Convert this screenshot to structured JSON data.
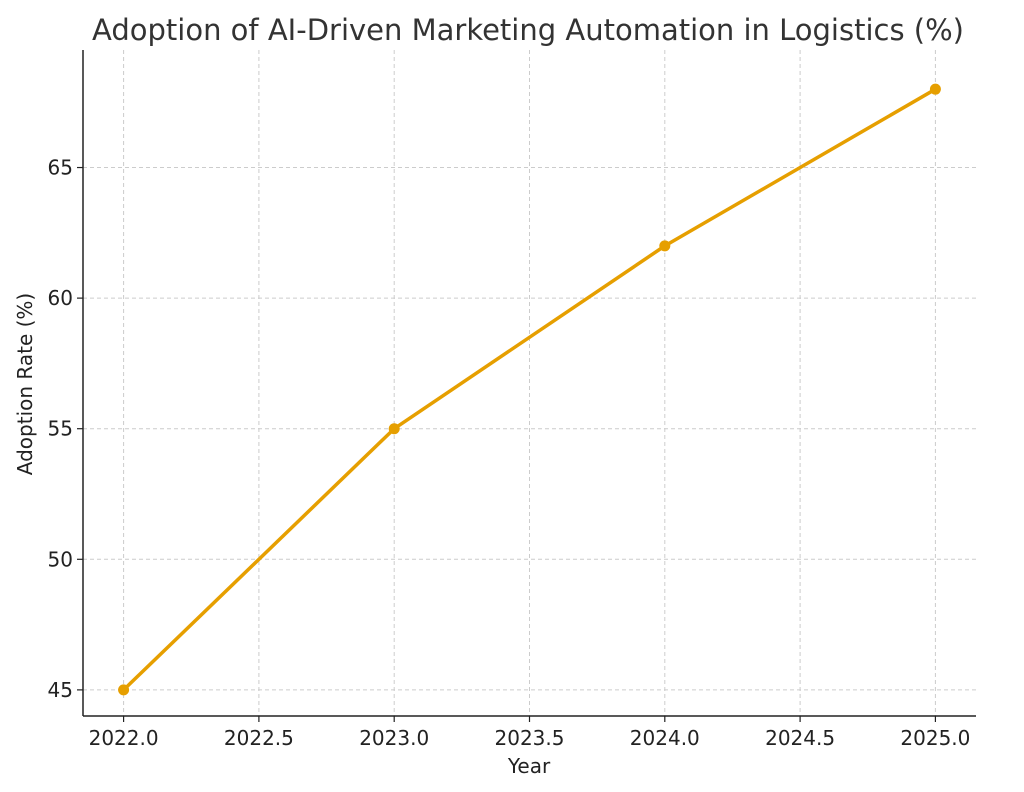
{
  "chart_data": {
    "type": "line",
    "title": "Adoption of AI-Driven Marketing Automation in Logistics (%)",
    "xlabel": "Year",
    "ylabel": "Adoption Rate (%)",
    "x": [
      2022,
      2023,
      2024,
      2025
    ],
    "series": [
      {
        "values": [
          45,
          55,
          62,
          68
        ],
        "color": "#e69f00",
        "marker": "circle"
      }
    ],
    "xlim": [
      2021.85,
      2025.15
    ],
    "ylim": [
      44.0,
      69.5
    ],
    "x_ticks": [
      2022.0,
      2022.5,
      2023.0,
      2023.5,
      2024.0,
      2024.5,
      2025.0
    ],
    "x_tick_labels": [
      "2022.0",
      "2022.5",
      "2023.0",
      "2023.5",
      "2024.0",
      "2024.5",
      "2025.0"
    ],
    "y_ticks": [
      45,
      50,
      55,
      60,
      65
    ],
    "y_tick_labels": [
      "45",
      "50",
      "55",
      "60",
      "65"
    ],
    "grid": true,
    "grid_style": "dashed",
    "legend": "none"
  }
}
